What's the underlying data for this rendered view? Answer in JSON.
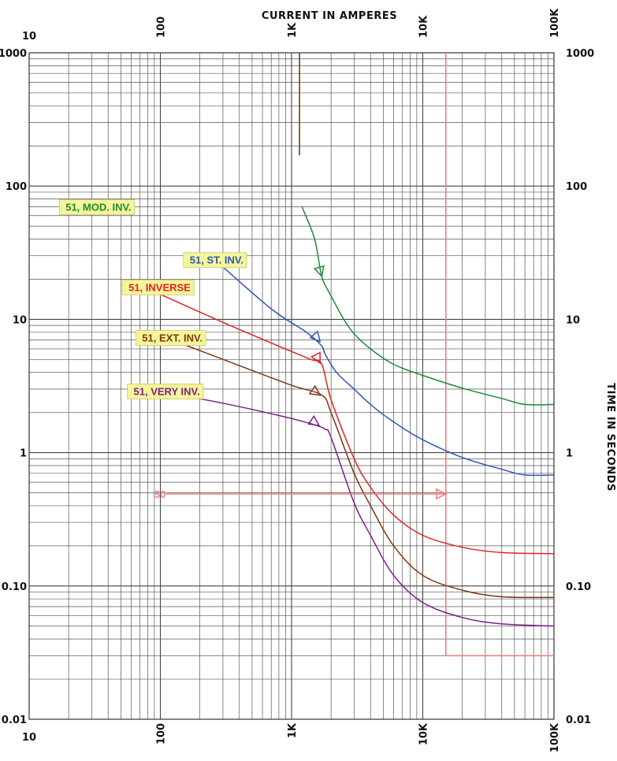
{
  "chart_data": {
    "type": "line",
    "x_scale": "log",
    "y_scale": "log",
    "xlim": [
      10,
      100000
    ],
    "ylim": [
      0.01,
      1000
    ],
    "grid": true,
    "xlabel": "CURRENT IN AMPERES",
    "ylabel": "TIME IN SECONDS",
    "x_ticks": [
      {
        "value": 10,
        "label": "10"
      },
      {
        "value": 100,
        "label": "100"
      },
      {
        "value": 1000,
        "label": "1K"
      },
      {
        "value": 10000,
        "label": "10K"
      },
      {
        "value": 100000,
        "label": "100K"
      }
    ],
    "y_ticks": [
      {
        "value": 1000,
        "label": "1000"
      },
      {
        "value": 100,
        "label": "100"
      },
      {
        "value": 10,
        "label": "10"
      },
      {
        "value": 1,
        "label": "1"
      },
      {
        "value": 0.1,
        "label": "0.10"
      },
      {
        "value": 0.01,
        "label": "0.01"
      }
    ],
    "series": [
      {
        "name": "51, MOD. INV.",
        "color": "#1f8a3a",
        "label_at": [
          60,
          70
        ],
        "label_anchor": "end",
        "arrow_at": [
          1700,
          21
        ],
        "points": [
          [
            1200,
            70
          ],
          [
            1500,
            40
          ],
          [
            1700,
            21
          ],
          [
            2000,
            15
          ],
          [
            2500,
            10
          ],
          [
            3000,
            7.8
          ],
          [
            4000,
            6
          ],
          [
            6000,
            4.6
          ],
          [
            10000,
            3.8
          ],
          [
            20000,
            3.05
          ],
          [
            40000,
            2.55
          ],
          [
            60000,
            2.3
          ],
          [
            100000,
            2.3
          ]
        ]
      },
      {
        "name": "51, ST. INV.",
        "color": "#2f56b0",
        "label_at": [
          430,
          28
        ],
        "label_anchor": "end",
        "arrow_at": [
          1650,
          6.8
        ],
        "points": [
          [
            260,
            28
          ],
          [
            700,
            12
          ],
          [
            1300,
            8
          ],
          [
            1700,
            6.3
          ],
          [
            1800,
            5.5
          ],
          [
            2200,
            4
          ],
          [
            3000,
            3
          ],
          [
            4000,
            2.3
          ],
          [
            6000,
            1.7
          ],
          [
            10000,
            1.25
          ],
          [
            20000,
            0.92
          ],
          [
            40000,
            0.75
          ],
          [
            60000,
            0.68
          ],
          [
            100000,
            0.68
          ]
        ]
      },
      {
        "name": "51, INVERSE",
        "color": "#e02424",
        "label_at": [
          170,
          17.5
        ],
        "label_anchor": "end",
        "arrow_at": [
          1650,
          4.7
        ],
        "points": [
          [
            75,
            17.5
          ],
          [
            300,
            9.5
          ],
          [
            800,
            6.3
          ],
          [
            1400,
            5
          ],
          [
            1700,
            4.6
          ],
          [
            2000,
            2.5
          ],
          [
            3000,
            0.9
          ],
          [
            4000,
            0.55
          ],
          [
            6000,
            0.34
          ],
          [
            10000,
            0.24
          ],
          [
            20000,
            0.195
          ],
          [
            40000,
            0.178
          ],
          [
            100000,
            0.175
          ]
        ]
      },
      {
        "name": "51, EXT. INV.",
        "color": "#7a3a12",
        "label_at": [
          210,
          7.3
        ],
        "label_anchor": "end",
        "arrow_at": [
          1650,
          2.7
        ],
        "points": [
          [
            110,
            7.3
          ],
          [
            400,
            4.5
          ],
          [
            1000,
            3.2
          ],
          [
            1700,
            2.7
          ],
          [
            2000,
            2
          ],
          [
            3000,
            0.7
          ],
          [
            4000,
            0.4
          ],
          [
            6000,
            0.2
          ],
          [
            10000,
            0.12
          ],
          [
            20000,
            0.093
          ],
          [
            40000,
            0.083
          ],
          [
            100000,
            0.082
          ]
        ]
      },
      {
        "name": "51, VERY INV.",
        "color": "#7b1f88",
        "label_at": [
          200,
          2.9
        ],
        "label_anchor": "end",
        "arrow_at": [
          1620,
          1.6
        ],
        "points": [
          [
            95,
            2.9
          ],
          [
            300,
            2.35
          ],
          [
            800,
            1.9
          ],
          [
            1400,
            1.65
          ],
          [
            1800,
            1.5
          ],
          [
            2000,
            1.3
          ],
          [
            3000,
            0.42
          ],
          [
            4000,
            0.24
          ],
          [
            6000,
            0.12
          ],
          [
            10000,
            0.075
          ],
          [
            20000,
            0.058
          ],
          [
            40000,
            0.052
          ],
          [
            100000,
            0.05
          ]
        ]
      },
      {
        "name": "50",
        "color": "#f07f7f",
        "label_at": [
          110,
          0.49
        ],
        "label_anchor": "end",
        "arrow_at": [
          15000,
          0.49
        ],
        "points": [
          [
            110,
            0.49
          ],
          [
            15000,
            0.49
          ]
        ]
      }
    ],
    "vertical_lines": [
      {
        "color": "#7a3a12",
        "x": 1150,
        "y_from": 1000,
        "y_to": 170
      },
      {
        "color": "#f07f7f",
        "x": 15000,
        "y_from": 1000,
        "y_to": 0.03
      }
    ],
    "horizontal_lines": [
      {
        "color": "#f07f7f",
        "y": 0.03,
        "x_from": 15000,
        "x_to": 100000
      }
    ]
  }
}
